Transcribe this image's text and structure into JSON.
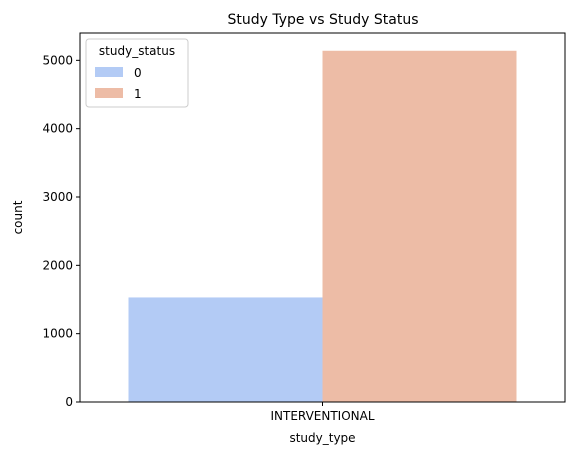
{
  "chart_data": {
    "type": "bar",
    "title": "Study Type vs Study Status",
    "xlabel": "study_type",
    "ylabel": "count",
    "categories": [
      "INTERVENTIONAL"
    ],
    "series": [
      {
        "name": "0",
        "values": [
          1530
        ],
        "color": "#b3cbf5"
      },
      {
        "name": "1",
        "values": [
          5140
        ],
        "color": "#edbca6"
      }
    ],
    "ylim": [
      0,
      5400
    ],
    "yticks": [
      0,
      1000,
      2000,
      3000,
      4000,
      5000
    ],
    "grid": false,
    "legend": {
      "title": "study_status",
      "placement": "top-left"
    }
  }
}
